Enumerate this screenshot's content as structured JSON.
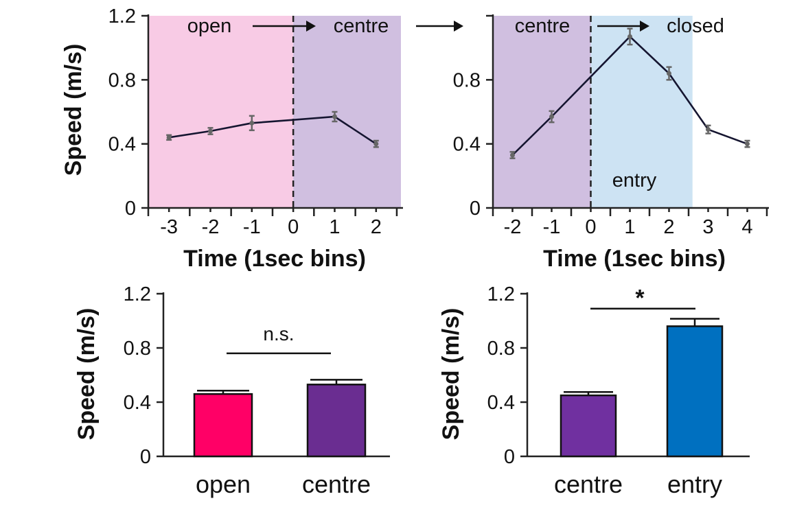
{
  "chart_data": [
    {
      "type": "line",
      "panel": "top-left",
      "ylabel": "Speed (m/s)",
      "xlabel": "Time (1sec bins)",
      "ylim": [
        0,
        1.2
      ],
      "yticks": [
        "0",
        "0.4",
        "0.8",
        "1.2"
      ],
      "xlim": [
        -3.5,
        2.6
      ],
      "xticks": [
        "-3",
        "-2",
        "-1",
        "0",
        "1",
        "2"
      ],
      "regions": [
        {
          "name": "open-region",
          "from": -3.5,
          "to": 0,
          "color": "#f8cbe5"
        },
        {
          "name": "centre-region",
          "from": 0,
          "to": 2.6,
          "color": "#d0bfe0"
        }
      ],
      "annotations": {
        "left": "open",
        "right": "centre"
      },
      "series": [
        {
          "name": "speed",
          "x": [
            -3,
            -2,
            -1,
            0,
            1,
            2
          ],
          "y": [
            0.44,
            0.48,
            0.53,
            0.55,
            0.57,
            0.4
          ],
          "err": [
            0.015,
            0.02,
            0.045,
            0,
            0.03,
            0.02
          ],
          "markers": [
            true,
            true,
            true,
            false,
            true,
            true
          ]
        }
      ]
    },
    {
      "type": "line",
      "panel": "top-right",
      "ylabel": "",
      "xlabel": "Time (1sec bins)",
      "ylim": [
        0,
        1.2
      ],
      "yticks": [
        "0",
        "0.4",
        "0.8",
        ""
      ],
      "xlim": [
        -2.5,
        4.5
      ],
      "xticks": [
        "-2",
        "-1",
        "0",
        "1",
        "2",
        "3",
        "4"
      ],
      "regions": [
        {
          "name": "centre-region",
          "from": -2.5,
          "to": 0,
          "color": "#d0bfe0"
        },
        {
          "name": "entry-region",
          "from": 0,
          "to": 2.6,
          "color": "#cde3f3"
        }
      ],
      "annotations": {
        "left": "centre",
        "right": "closed",
        "region_label": "entry",
        "connector_arrow": "→"
      },
      "series": [
        {
          "name": "speed",
          "x": [
            -2,
            -1,
            0,
            1,
            2,
            3,
            4
          ],
          "y": [
            0.33,
            0.57,
            0.82,
            1.07,
            0.84,
            0.49,
            0.4
          ],
          "err": [
            0.02,
            0.035,
            0,
            0.05,
            0.04,
            0.025,
            0.02
          ],
          "markers": [
            true,
            true,
            false,
            true,
            true,
            true,
            true
          ]
        }
      ]
    },
    {
      "type": "bar",
      "panel": "bottom-left",
      "ylabel": "Speed (m/s)",
      "ylim": [
        0,
        1.2
      ],
      "yticks": [
        "0",
        "0.4",
        "0.8",
        "1.2"
      ],
      "categories": [
        "open",
        "centre"
      ],
      "values": [
        0.46,
        0.53
      ],
      "errors": [
        0.025,
        0.035
      ],
      "colors": [
        "#ff0066",
        "#6a2d91"
      ],
      "significance": {
        "label": "n.s.",
        "y": 0.76
      }
    },
    {
      "type": "bar",
      "panel": "bottom-right",
      "ylabel": "Speed (m/s)",
      "ylim": [
        0,
        1.2
      ],
      "yticks": [
        "0",
        "0.4",
        "0.8",
        "1.2"
      ],
      "categories": [
        "centre",
        "entry"
      ],
      "values": [
        0.45,
        0.96
      ],
      "errors": [
        0.025,
        0.055
      ],
      "colors": [
        "#7030a0",
        "#0070c0"
      ],
      "significance": {
        "label": "*",
        "y": 1.09
      }
    }
  ]
}
